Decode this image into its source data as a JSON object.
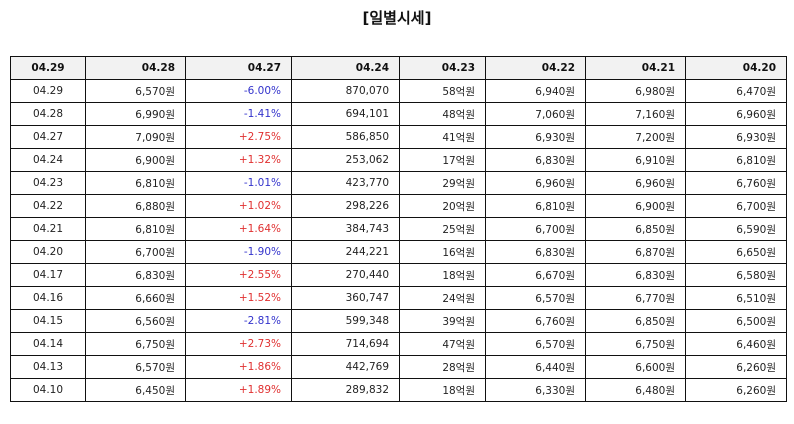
{
  "title": "[일별시세]",
  "colors": {
    "positive": "#e03030",
    "negative": "#3333cc",
    "header_bg": "#f2f2f2",
    "border": "#111111"
  },
  "table": {
    "headers": [
      "04.29",
      "04.28",
      "04.27",
      "04.24",
      "04.23",
      "04.22",
      "04.21",
      "04.20"
    ],
    "rows": [
      [
        "04.29",
        "6,570원",
        "-6.00%",
        "870,070",
        "58억원",
        "6,940원",
        "6,980원",
        "6,470원"
      ],
      [
        "04.28",
        "6,990원",
        "-1.41%",
        "694,101",
        "48억원",
        "7,060원",
        "7,160원",
        "6,960원"
      ],
      [
        "04.27",
        "7,090원",
        "+2.75%",
        "586,850",
        "41억원",
        "6,930원",
        "7,200원",
        "6,930원"
      ],
      [
        "04.24",
        "6,900원",
        "+1.32%",
        "253,062",
        "17억원",
        "6,830원",
        "6,910원",
        "6,810원"
      ],
      [
        "04.23",
        "6,810원",
        "-1.01%",
        "423,770",
        "29억원",
        "6,960원",
        "6,960원",
        "6,760원"
      ],
      [
        "04.22",
        "6,880원",
        "+1.02%",
        "298,226",
        "20억원",
        "6,810원",
        "6,900원",
        "6,700원"
      ],
      [
        "04.21",
        "6,810원",
        "+1.64%",
        "384,743",
        "25억원",
        "6,700원",
        "6,850원",
        "6,590원"
      ],
      [
        "04.20",
        "6,700원",
        "-1.90%",
        "244,221",
        "16억원",
        "6,830원",
        "6,870원",
        "6,650원"
      ],
      [
        "04.17",
        "6,830원",
        "+2.55%",
        "270,440",
        "18억원",
        "6,670원",
        "6,830원",
        "6,580원"
      ],
      [
        "04.16",
        "6,660원",
        "+1.52%",
        "360,747",
        "24억원",
        "6,570원",
        "6,770원",
        "6,510원"
      ],
      [
        "04.15",
        "6,560원",
        "-2.81%",
        "599,348",
        "39억원",
        "6,760원",
        "6,850원",
        "6,500원"
      ],
      [
        "04.14",
        "6,750원",
        "+2.73%",
        "714,694",
        "47억원",
        "6,570원",
        "6,750원",
        "6,460원"
      ],
      [
        "04.13",
        "6,570원",
        "+1.86%",
        "442,769",
        "28억원",
        "6,440원",
        "6,600원",
        "6,260원"
      ],
      [
        "04.10",
        "6,450원",
        "+1.89%",
        "289,832",
        "18억원",
        "6,330원",
        "6,480원",
        "6,260원"
      ]
    ]
  }
}
